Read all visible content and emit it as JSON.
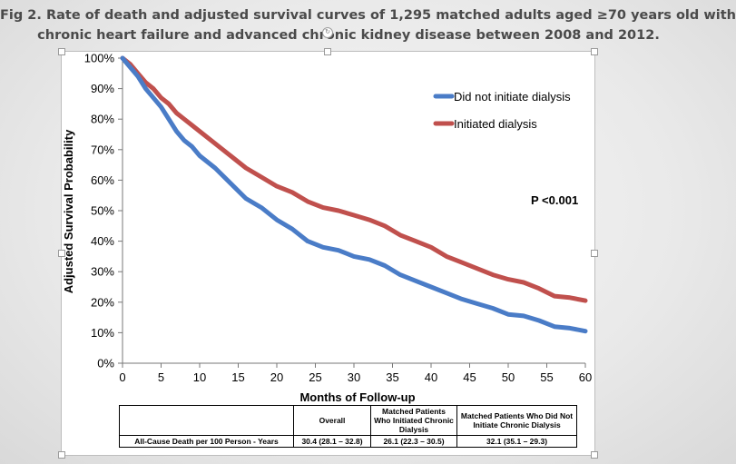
{
  "title": {
    "line1": "Fig 2. Rate of death and adjusted survival curves of 1,295 matched adults aged ≥70 years old with",
    "line2": "chronic heart failure and advanced chronic kidney disease between 2008 and 2012."
  },
  "table": {
    "headers": [
      "",
      "Overall",
      "Matched Patients Who Initiated Chronic Dialysis",
      "Matched Patients Who Did Not Initiate Chronic Dialysis"
    ],
    "row_label": "All-Cause Death per 100 Person - Years",
    "values": [
      "30.4 (28.1 – 32.8)",
      "26.1 (22.3 – 30.5)",
      "32.1 (35.1 – 29.3)"
    ]
  },
  "chart_data": {
    "type": "line",
    "title": "",
    "xlabel": "Months of Follow-up",
    "ylabel": "Adjusted Survival Probability",
    "xlim": [
      0,
      60
    ],
    "ylim": [
      0,
      100
    ],
    "x_ticks": [
      "0",
      "5",
      "10",
      "15",
      "20",
      "25",
      "30",
      "35",
      "40",
      "45",
      "50",
      "55",
      "60"
    ],
    "y_ticks": [
      "0%",
      "10%",
      "20%",
      "30%",
      "40%",
      "50%",
      "60%",
      "70%",
      "80%",
      "90%",
      "100%"
    ],
    "annotation": "P <0.001",
    "legend_position": "top-right",
    "grid": false,
    "series": [
      {
        "name": "Did not initiate dialysis",
        "color": "#4a7cc7",
        "x": [
          0,
          1,
          2,
          3,
          4,
          5,
          6,
          7,
          8,
          9,
          10,
          12,
          14,
          16,
          18,
          20,
          22,
          24,
          26,
          28,
          30,
          32,
          34,
          36,
          38,
          40,
          42,
          44,
          46,
          48,
          50,
          52,
          54,
          56,
          58,
          60
        ],
        "values": [
          100,
          97,
          94,
          90,
          87,
          84,
          80,
          76,
          73,
          71,
          68,
          64,
          59,
          54,
          51,
          47,
          44,
          40,
          38,
          37,
          35,
          34,
          32,
          29,
          27,
          25,
          23,
          21,
          19.5,
          18,
          16,
          15.5,
          14,
          12,
          11.5,
          10.5
        ]
      },
      {
        "name": "Initiated dialysis",
        "color": "#c0504d",
        "x": [
          0,
          1,
          2,
          3,
          4,
          5,
          6,
          7,
          8,
          9,
          10,
          12,
          14,
          16,
          18,
          20,
          22,
          24,
          26,
          28,
          30,
          32,
          34,
          36,
          38,
          40,
          42,
          44,
          46,
          48,
          50,
          52,
          54,
          56,
          58,
          60
        ],
        "values": [
          100,
          98,
          95,
          92,
          90,
          87,
          85,
          82,
          80,
          78,
          76,
          72,
          68,
          64,
          61,
          58,
          56,
          53,
          51,
          50,
          48.5,
          47,
          45,
          42,
          40,
          38,
          35,
          33,
          31,
          29,
          27.5,
          26.5,
          24.5,
          22,
          21.5,
          20.5
        ]
      }
    ]
  }
}
